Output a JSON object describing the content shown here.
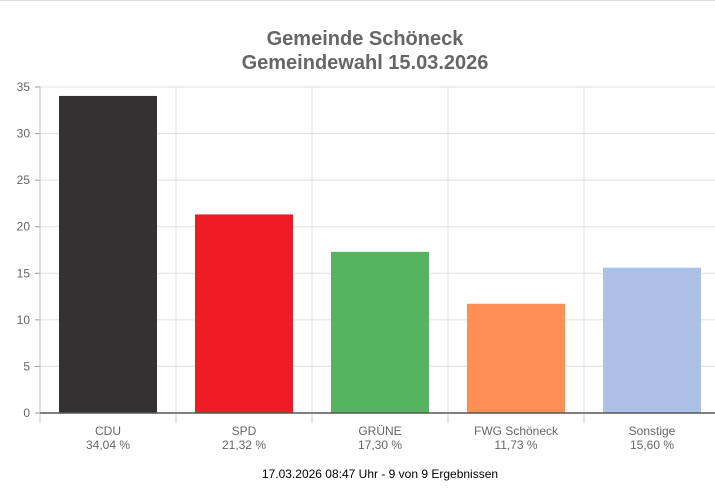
{
  "chart_data": {
    "type": "bar",
    "title": "Gemeinde Schöneck",
    "subtitle": "Gemeindewahl 15.03.2026",
    "categories": [
      "CDU",
      "SPD",
      "GRÜNE",
      "FWG Schöneck",
      "Sonstige"
    ],
    "values": [
      34.04,
      21.32,
      17.3,
      11.73,
      15.6
    ],
    "value_labels": [
      "34,04 %",
      "21,32 %",
      "17,30 %",
      "11,73 %",
      "15,60 %"
    ],
    "colors": [
      "#333132",
      "#ef1c25",
      "#56b461",
      "#ff8f55",
      "#adc0e5"
    ],
    "ylim": [
      0,
      35
    ],
    "yticks": [
      0,
      5,
      10,
      15,
      20,
      25,
      30,
      35
    ],
    "grid": true,
    "xlabel": "",
    "ylabel": ""
  },
  "footer": "17.03.2026 08:47 Uhr - 9 von 9 Ergebnissen"
}
